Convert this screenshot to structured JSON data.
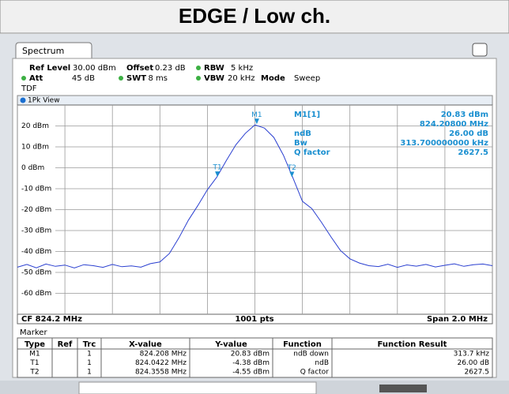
{
  "header": {
    "title": "EDGE / Low ch."
  },
  "tab": "Spectrum",
  "settings": [
    {
      "label": "Ref Level",
      "value": "30.00 dBm"
    },
    {
      "label": "Offset",
      "value": "0.23 dB"
    },
    {
      "label": "RBW",
      "value": "5 kHz"
    },
    {
      "label": "Att",
      "value": "45 dB"
    },
    {
      "label": "SWT",
      "value": "8 ms"
    },
    {
      "label": "VBW",
      "value": "20 kHz"
    },
    {
      "label": "Mode",
      "value": "Sweep"
    }
  ],
  "tdf": "TDF",
  "view": "1Pk View",
  "marker_info": [
    {
      "label": "M1[1]",
      "value": "20.83 dBm"
    },
    {
      "label": "",
      "value": "824.20800 MHz"
    },
    {
      "label": "ndB",
      "value": "26.00 dB"
    },
    {
      "label": "Bw",
      "value": "313.700000000 kHz"
    },
    {
      "label": "Q factor",
      "value": "2627.5"
    }
  ],
  "chart_data": {
    "type": "line",
    "x": [
      823.2,
      823.24,
      823.28,
      823.32,
      823.36,
      823.4,
      823.44,
      823.48,
      823.52,
      823.56,
      823.6,
      823.64,
      823.68,
      823.72,
      823.76,
      823.8,
      823.84,
      823.88,
      823.92,
      823.96,
      824.0,
      824.04,
      824.08,
      824.12,
      824.16,
      824.2,
      824.24,
      824.28,
      824.32,
      824.36,
      824.4,
      824.44,
      824.48,
      824.52,
      824.56,
      824.6,
      824.64,
      824.68,
      824.72,
      824.76,
      824.8,
      824.84,
      824.88,
      824.92,
      824.96,
      825.0,
      825.04,
      825.08,
      825.12,
      825.16,
      825.2
    ],
    "series": [
      {
        "name": "1Pk",
        "color": "#2a3fd0",
        "values": [
          -47.5,
          -46.2,
          -47.8,
          -46.0,
          -47.1,
          -46.5,
          -47.9,
          -46.3,
          -46.8,
          -47.6,
          -46.2,
          -47.3,
          -46.9,
          -47.5,
          -45.8,
          -45.0,
          -41.0,
          -33.5,
          -25.0,
          -18.0,
          -10.5,
          -4.4,
          3.5,
          11.0,
          16.5,
          20.5,
          19.0,
          14.5,
          6.0,
          -4.8,
          -16.0,
          -19.5,
          -26.0,
          -33.0,
          -39.5,
          -43.5,
          -45.5,
          -46.8,
          -47.2,
          -46.1,
          -47.6,
          -46.4,
          -47.0,
          -46.2,
          -47.4,
          -46.6,
          -45.9,
          -47.1,
          -46.3,
          -46.0,
          -46.8
        ]
      }
    ],
    "markers": [
      {
        "name": "M1",
        "x": 824.208,
        "y": 20.83
      },
      {
        "name": "T1",
        "x": 824.0422,
        "y": -4.38
      },
      {
        "name": "T2",
        "x": 824.3558,
        "y": -4.55
      }
    ],
    "xlim": [
      823.2,
      825.2
    ],
    "xticks": [
      823.2,
      823.4,
      823.6,
      823.8,
      824.0,
      824.2,
      824.4,
      824.6,
      824.8,
      825.0,
      825.2
    ],
    "ylim": [
      -70,
      30
    ],
    "yticks": [
      {
        "value": 20,
        "label": "20 dBm"
      },
      {
        "value": 10,
        "label": "10 dBm"
      },
      {
        "value": 0,
        "label": "0 dBm"
      },
      {
        "value": -10,
        "label": "-10 dBm"
      },
      {
        "value": -20,
        "label": "-20 dBm"
      },
      {
        "value": -30,
        "label": "-30 dBm"
      },
      {
        "value": -40,
        "label": "-40 dBm"
      },
      {
        "value": -50,
        "label": "-50 dBm"
      },
      {
        "value": -60,
        "label": "-60 dBm"
      }
    ],
    "grid": true
  },
  "footer": {
    "left": "CF 824.2 MHz",
    "center": "1001 pts",
    "right": "Span 2.0 MHz"
  },
  "marker_table": {
    "title": "Marker",
    "columns": [
      "Type",
      "Ref",
      "Trc",
      "X-value",
      "Y-value",
      "Function",
      "Function Result"
    ],
    "rows": [
      [
        "M1",
        "",
        "1",
        "824.208 MHz",
        "20.83 dBm",
        "ndB down",
        "313.7 kHz"
      ],
      [
        "T1",
        "",
        "1",
        "824.0422 MHz",
        "-4.38 dBm",
        "ndB",
        "26.00 dB"
      ],
      [
        "T2",
        "",
        "1",
        "824.3558 MHz",
        "-4.55 dBm",
        "Q factor",
        "2627.5"
      ]
    ]
  }
}
